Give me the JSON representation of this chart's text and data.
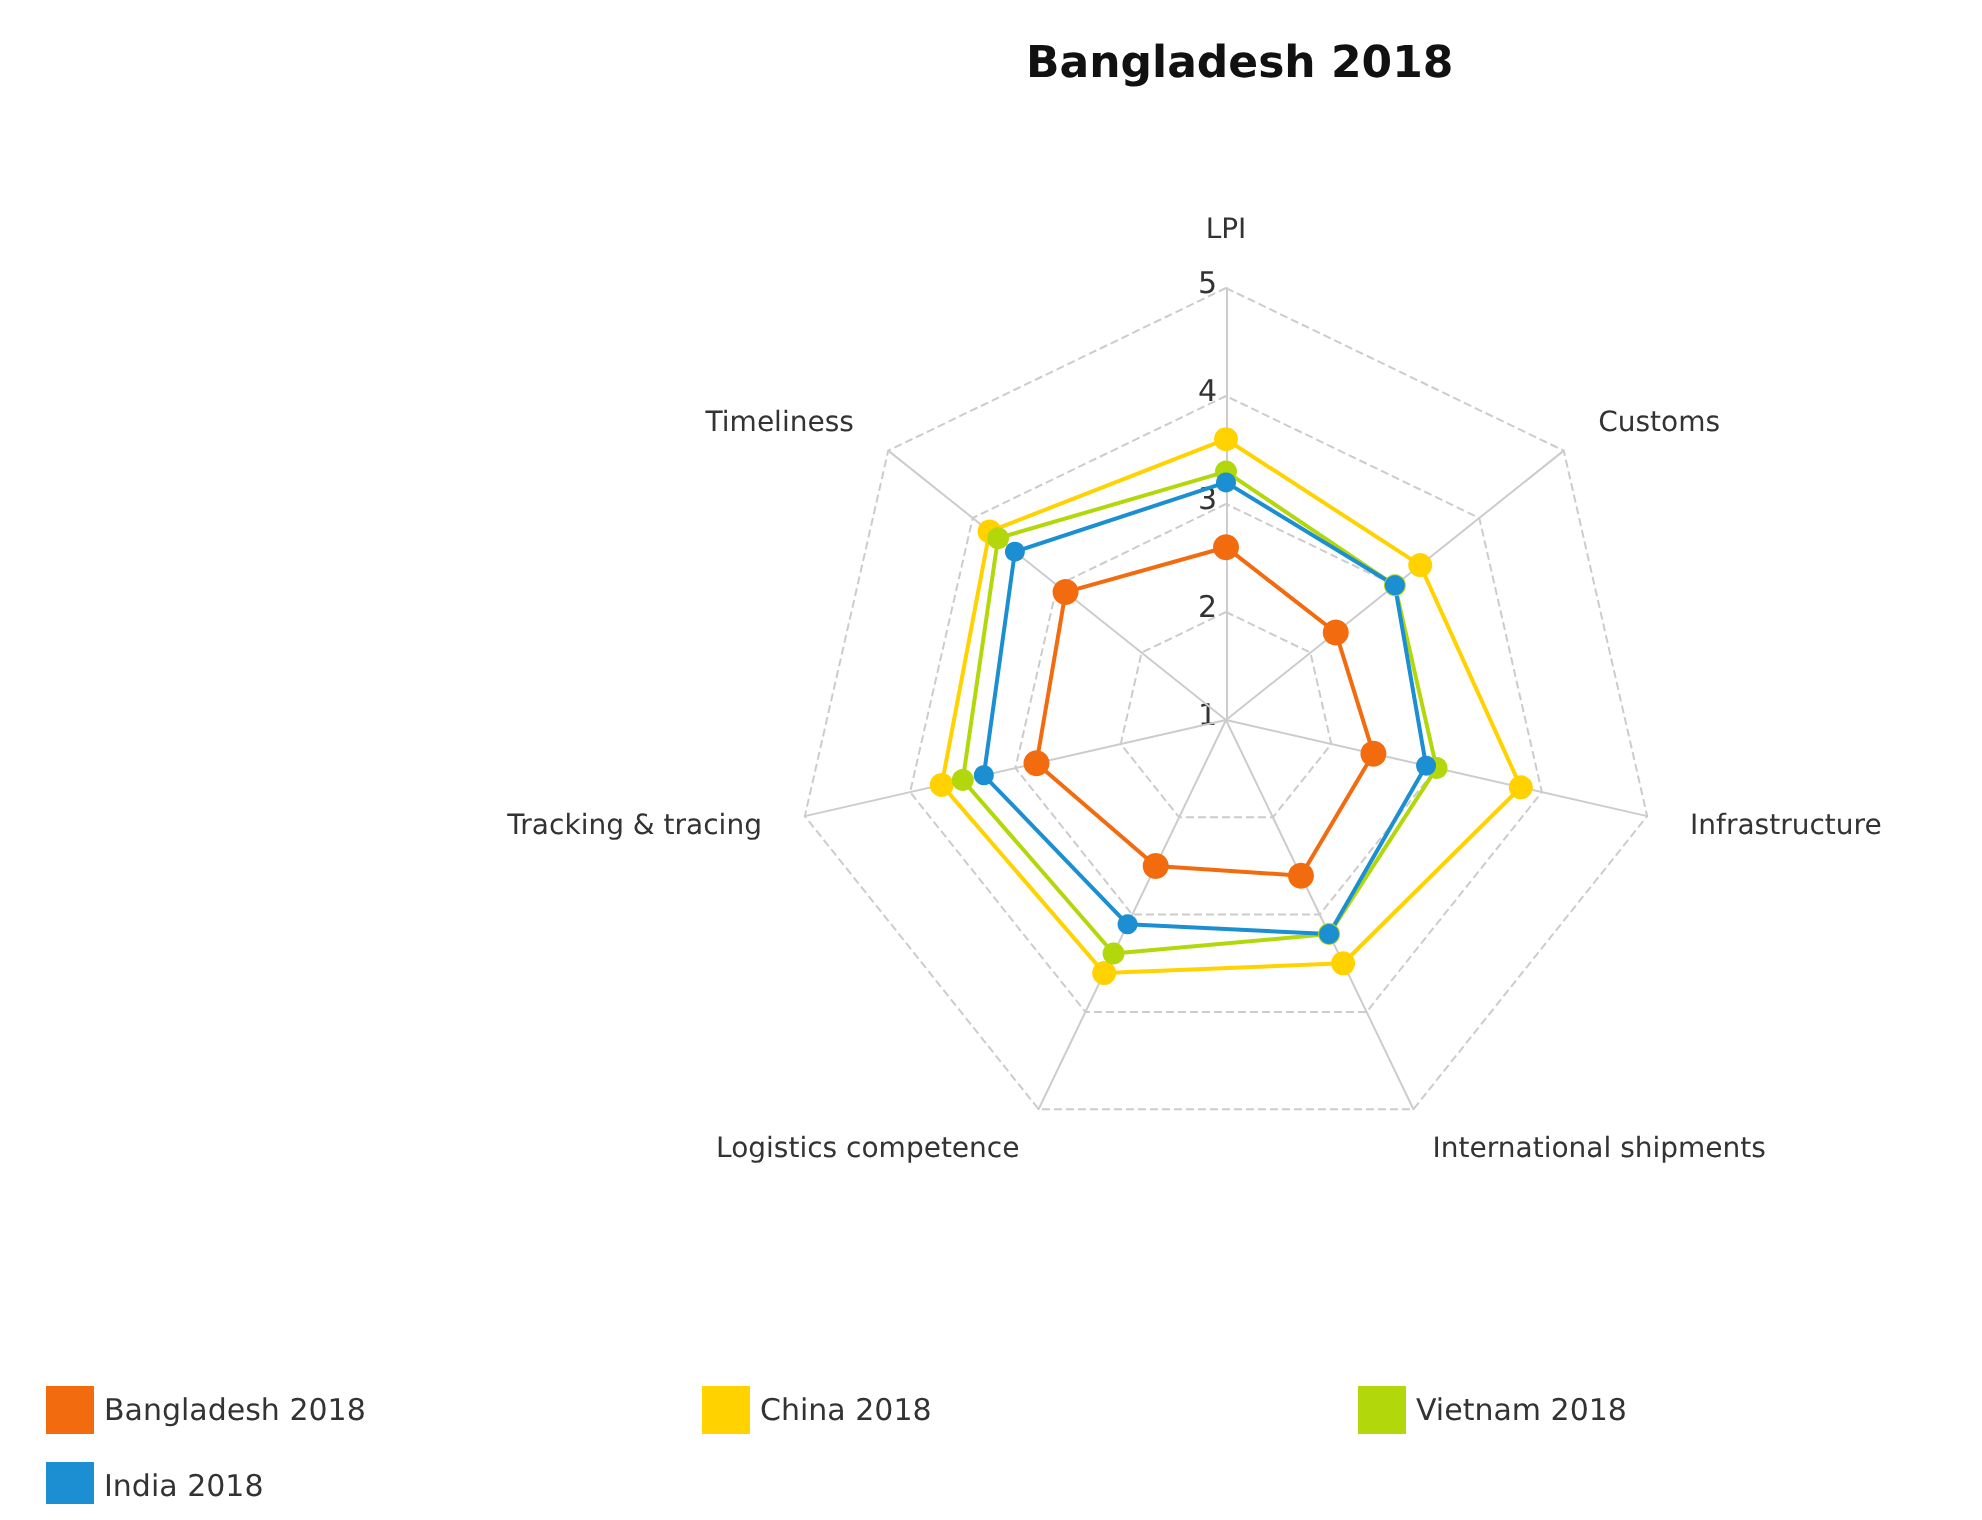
{
  "chart_data": {
    "type": "radar",
    "title": "Bangladesh 2018",
    "categories": [
      "LPI",
      "Customs",
      "Infrastructure",
      "International shipments",
      "Logistics competence",
      "Tracking & tracing",
      "Timeliness"
    ],
    "ylim": [
      1,
      5
    ],
    "yticks": [
      1,
      2,
      3,
      4,
      5
    ],
    "grid": true,
    "legend": "bottom",
    "marker": "circle",
    "line_style": "solid",
    "series": [
      {
        "name": "Bangladesh 2018",
        "color": "#f26b0f",
        "values": [
          2.6,
          2.3,
          2.4,
          2.6,
          2.5,
          2.8,
          2.9
        ]
      },
      {
        "name": "China 2018",
        "color": "#ffd200",
        "values": [
          3.6,
          3.3,
          3.8,
          3.5,
          3.6,
          3.7,
          3.8
        ]
      },
      {
        "name": "Vietnam 2018",
        "color": "#b2d80c",
        "values": [
          3.3,
          3.0,
          3.0,
          3.2,
          3.4,
          3.5,
          3.7
        ]
      },
      {
        "name": "India 2018",
        "color": "#1b8fd2",
        "values": [
          3.2,
          3.0,
          2.9,
          3.2,
          3.1,
          3.3,
          3.5
        ]
      }
    ]
  }
}
